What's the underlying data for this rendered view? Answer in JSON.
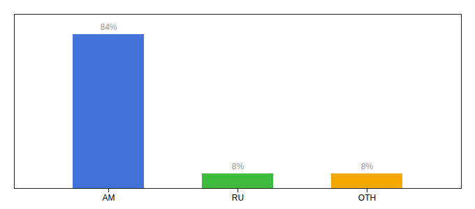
{
  "chart_data": {
    "type": "bar",
    "categories": [
      "AM",
      "RU",
      "OTH"
    ],
    "values": [
      84,
      8,
      8
    ],
    "value_labels": [
      "84%",
      "8%",
      "8%"
    ],
    "colors": [
      "#4472DB",
      "#3DBB3D",
      "#F5A800"
    ],
    "ylim": [
      0,
      95
    ],
    "data_labels": true,
    "tick_labels": "x"
  }
}
